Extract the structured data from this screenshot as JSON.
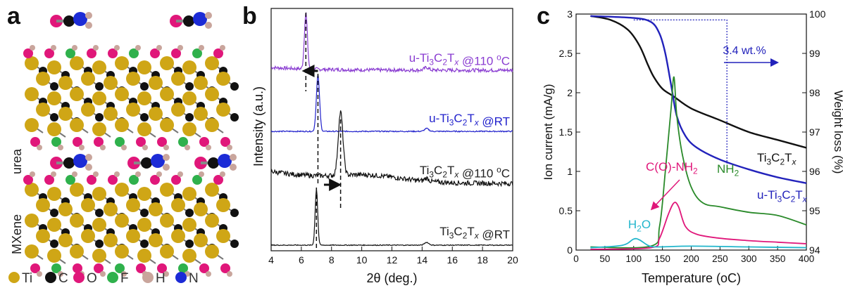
{
  "panel_a": {
    "letter": "a",
    "labels": [
      "urea",
      "MXene"
    ],
    "legend": [
      {
        "symbol": "Ti",
        "color": "#cfa616"
      },
      {
        "symbol": "C",
        "color": "#111111"
      },
      {
        "symbol": "O",
        "color": "#e0177a"
      },
      {
        "symbol": "F",
        "color": "#2fb14c"
      },
      {
        "symbol": "H",
        "color": "#c9a59c"
      },
      {
        "symbol": "N",
        "color": "#1c2bd6"
      }
    ]
  },
  "panel_b": {
    "letter": "b"
  },
  "panel_c": {
    "letter": "c"
  },
  "chart_data": [
    {
      "type": "line",
      "panel": "b",
      "xlabel": "2θ (deg.)",
      "ylabel": "Intensity (a.u.)",
      "xlim": [
        4,
        20
      ],
      "xticks": [
        4,
        6,
        8,
        10,
        12,
        14,
        16,
        18,
        20
      ],
      "series": [
        {
          "name": "u-Ti3C2Tx @110 oC",
          "color": "#8a3dd1",
          "peak_2theta": 6.3
        },
        {
          "name": "u-Ti3C2Tx @RT",
          "color": "#2222cc",
          "peak_2theta": 7.1
        },
        {
          "name": "Ti3C2Tx @110 oC",
          "color": "#111111",
          "peak_2theta": 8.6
        },
        {
          "name": "Ti3C2Tx @RT",
          "color": "#111111",
          "peak_2theta": 7.0
        }
      ],
      "annotations": [
        {
          "type": "arrow",
          "direction": "left",
          "near_series": "u-Ti3C2Tx @110 oC"
        },
        {
          "type": "arrow",
          "direction": "right",
          "near_series": "Ti3C2Tx @110 oC"
        }
      ]
    },
    {
      "type": "line",
      "panel": "c",
      "xlabel": "Temperature (oC)",
      "ylabel": "Ion current (mA/g)",
      "y2label": "Weight loss (%)",
      "xlim": [
        0,
        400
      ],
      "ylim": [
        0,
        3
      ],
      "y2lim": [
        94,
        100
      ],
      "xticks": [
        0,
        50,
        100,
        150,
        200,
        250,
        300,
        350,
        400
      ],
      "yticks": [
        0,
        0.5,
        1,
        1.5,
        2,
        2.5,
        3
      ],
      "y2ticks": [
        94,
        95,
        96,
        97,
        98,
        99,
        100
      ],
      "series": [
        {
          "name": "Ti3C2Tx",
          "axis": "right",
          "color": "#111111",
          "x": [
            25,
            60,
            90,
            110,
            125,
            135,
            150,
            170,
            200,
            250,
            300,
            350,
            400
          ],
          "y": [
            99.95,
            99.85,
            99.6,
            99.2,
            98.7,
            98.4,
            98.1,
            97.9,
            97.6,
            97.3,
            97.0,
            96.8,
            96.6
          ]
        },
        {
          "name": "u-Ti3C2Tx",
          "axis": "right",
          "color": "#2222bb",
          "x": [
            25,
            100,
            130,
            145,
            155,
            165,
            175,
            190,
            210,
            250,
            300,
            350,
            400
          ],
          "y": [
            99.95,
            99.9,
            99.8,
            99.5,
            99.0,
            98.2,
            97.4,
            96.9,
            96.6,
            96.3,
            96.05,
            95.85,
            95.7
          ]
        },
        {
          "name": "NH2",
          "axis": "left",
          "color": "#2a8a2a",
          "x": [
            25,
            130,
            145,
            155,
            165,
            170,
            175,
            185,
            200,
            220,
            250,
            300,
            350,
            400
          ],
          "y": [
            0.04,
            0.05,
            0.3,
            1.0,
            1.8,
            2.2,
            1.7,
            1.2,
            0.8,
            0.6,
            0.55,
            0.48,
            0.44,
            0.32
          ]
        },
        {
          "name": "C(O)-NH2",
          "axis": "left",
          "color": "#e0177a",
          "x": [
            25,
            130,
            145,
            160,
            170,
            178,
            190,
            210,
            250,
            300,
            350,
            400
          ],
          "y": [
            0.01,
            0.03,
            0.15,
            0.45,
            0.6,
            0.55,
            0.3,
            0.2,
            0.15,
            0.12,
            0.1,
            0.08
          ]
        },
        {
          "name": "H2O",
          "axis": "left",
          "color": "#22b6cc",
          "x": [
            25,
            80,
            100,
            110,
            125,
            140,
            200,
            300,
            400
          ],
          "y": [
            0.03,
            0.06,
            0.14,
            0.13,
            0.06,
            0.04,
            0.05,
            0.04,
            0.03
          ]
        }
      ],
      "annotations": [
        {
          "text": "3.4 wt.%",
          "type": "arrow",
          "color": "#2222bb"
        },
        {
          "text": "Ti3C2Tx"
        },
        {
          "text": "u-Ti3C2Tx"
        },
        {
          "text": "NH2"
        },
        {
          "text": "C(O)-NH2"
        },
        {
          "text": "H2O"
        }
      ]
    }
  ]
}
